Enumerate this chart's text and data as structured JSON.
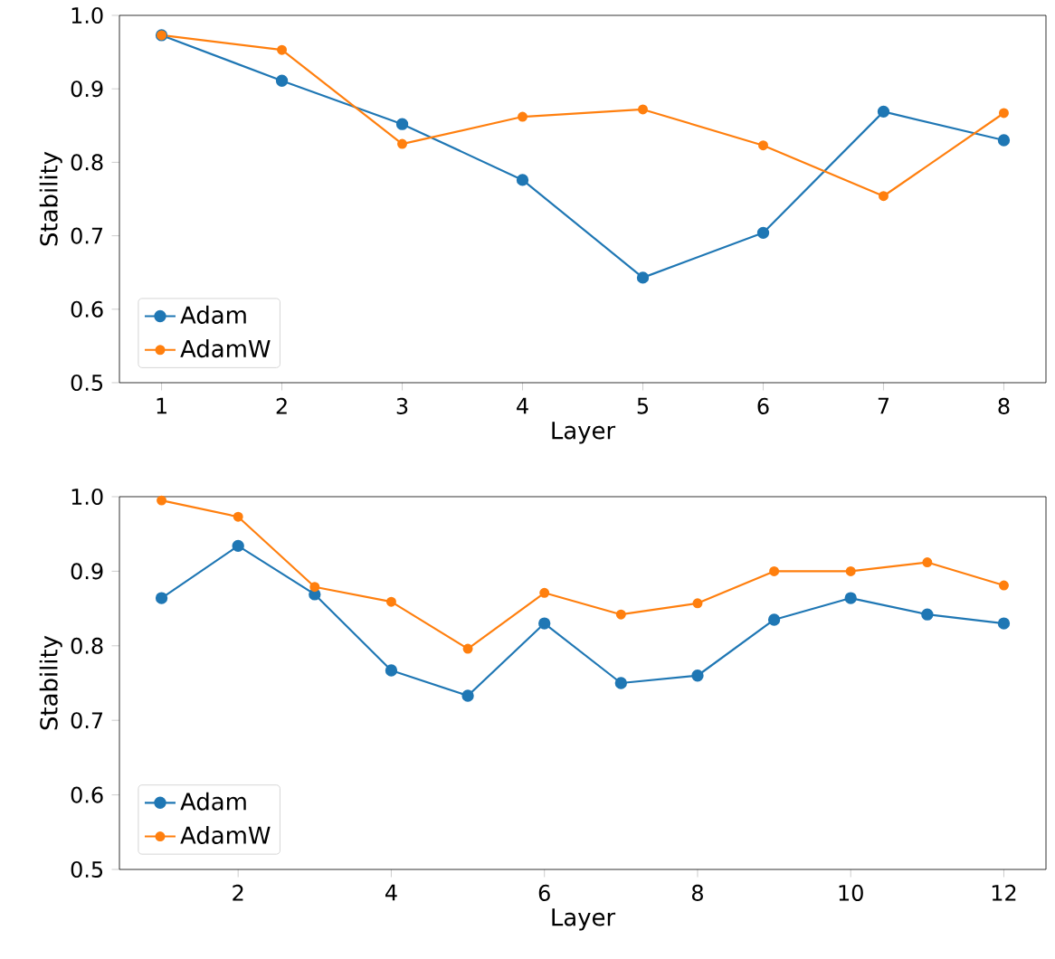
{
  "chart_data": [
    {
      "type": "line",
      "xlabel": "Layer",
      "ylabel": "Stability",
      "x": [
        1,
        2,
        3,
        4,
        5,
        6,
        7,
        8
      ],
      "xlim": [
        0.65,
        8.35
      ],
      "ylim": [
        0.5,
        1.0
      ],
      "xticks": [
        1,
        2,
        3,
        4,
        5,
        6,
        7,
        8
      ],
      "yticks": [
        {
          "value": 0.5,
          "label": "0.5"
        },
        {
          "value": 0.6,
          "label": "0.6"
        },
        {
          "value": 0.7,
          "label": "0.7"
        },
        {
          "value": 0.8,
          "label": "0.8"
        },
        {
          "value": 0.9,
          "label": "0.9"
        },
        {
          "value": 1.0,
          "label": "1.0"
        }
      ],
      "legend": "bottom left",
      "marker": "circle",
      "series": [
        {
          "name": "Adam",
          "color": "#1f77b4",
          "values": [
            0.973,
            0.911,
            0.852,
            0.776,
            0.643,
            0.704,
            0.869,
            0.83
          ]
        },
        {
          "name": "AdamW",
          "color": "#ff7f0e",
          "values": [
            0.973,
            0.953,
            0.825,
            0.862,
            0.872,
            0.823,
            0.754,
            0.867
          ]
        }
      ]
    },
    {
      "type": "line",
      "xlabel": "Layer",
      "ylabel": "Stability",
      "x": [
        1,
        2,
        3,
        4,
        5,
        6,
        7,
        8,
        9,
        10,
        11,
        12
      ],
      "xlim": [
        0.45,
        12.55
      ],
      "ylim": [
        0.5,
        1.0
      ],
      "xticks": [
        2,
        4,
        6,
        8,
        10,
        12
      ],
      "yticks": [
        {
          "value": 0.5,
          "label": "0.5"
        },
        {
          "value": 0.6,
          "label": "0.6"
        },
        {
          "value": 0.7,
          "label": "0.7"
        },
        {
          "value": 0.8,
          "label": "0.8"
        },
        {
          "value": 0.9,
          "label": "0.9"
        },
        {
          "value": 1.0,
          "label": "1.0"
        }
      ],
      "legend": "bottom left",
      "marker": "circle",
      "series": [
        {
          "name": "Adam",
          "color": "#1f77b4",
          "values": [
            0.864,
            0.934,
            0.869,
            0.767,
            0.733,
            0.83,
            0.75,
            0.76,
            0.835,
            0.864,
            0.842,
            0.83
          ]
        },
        {
          "name": "AdamW",
          "color": "#ff7f0e",
          "values": [
            0.995,
            0.973,
            0.879,
            0.859,
            0.796,
            0.871,
            0.842,
            0.857,
            0.9,
            0.9,
            0.912,
            0.881
          ]
        }
      ]
    }
  ]
}
